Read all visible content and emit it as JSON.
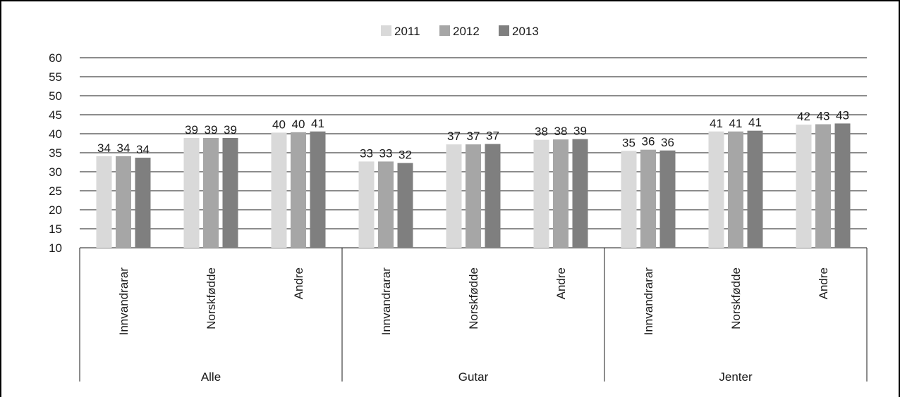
{
  "chart_data": {
    "type": "bar",
    "title": "",
    "xlabel": "",
    "ylabel": "",
    "ylim": [
      10,
      60
    ],
    "yticks": [
      10,
      15,
      20,
      25,
      30,
      35,
      40,
      45,
      50,
      55,
      60
    ],
    "grid": true,
    "legend_position": "top-center",
    "groups": [
      {
        "label": "Alle",
        "categories": [
          "Innvandrarar",
          "Norskfødde",
          "Andre"
        ]
      },
      {
        "label": "Gutar",
        "categories": [
          "Innvandrarar",
          "Norskfødde",
          "Andre"
        ]
      },
      {
        "label": "Jenter",
        "categories": [
          "Innvandrarar",
          "Norskfødde",
          "Andre"
        ]
      }
    ],
    "series": [
      {
        "name": "2011",
        "color": "#d9d9d9",
        "values": [
          34.1,
          38.9,
          40.3,
          32.7,
          37.2,
          38.4,
          35.5,
          40.6,
          42.4
        ],
        "labels": [
          "34",
          "39",
          "40",
          "33",
          "37",
          "38",
          "35",
          "41",
          "42"
        ]
      },
      {
        "name": "2012",
        "color": "#a6a6a6",
        "values": [
          34.1,
          38.9,
          40.4,
          32.7,
          37.2,
          38.5,
          35.8,
          40.6,
          42.5
        ],
        "labels": [
          "34",
          "39",
          "40",
          "33",
          "37",
          "38",
          "36",
          "41",
          "43"
        ]
      },
      {
        "name": "2013",
        "color": "#7f7f7f",
        "values": [
          33.7,
          38.9,
          40.6,
          32.3,
          37.3,
          38.6,
          35.6,
          40.8,
          42.7
        ],
        "labels": [
          "34",
          "39",
          "41",
          "32",
          "37",
          "39",
          "36",
          "41",
          "43"
        ]
      }
    ]
  }
}
